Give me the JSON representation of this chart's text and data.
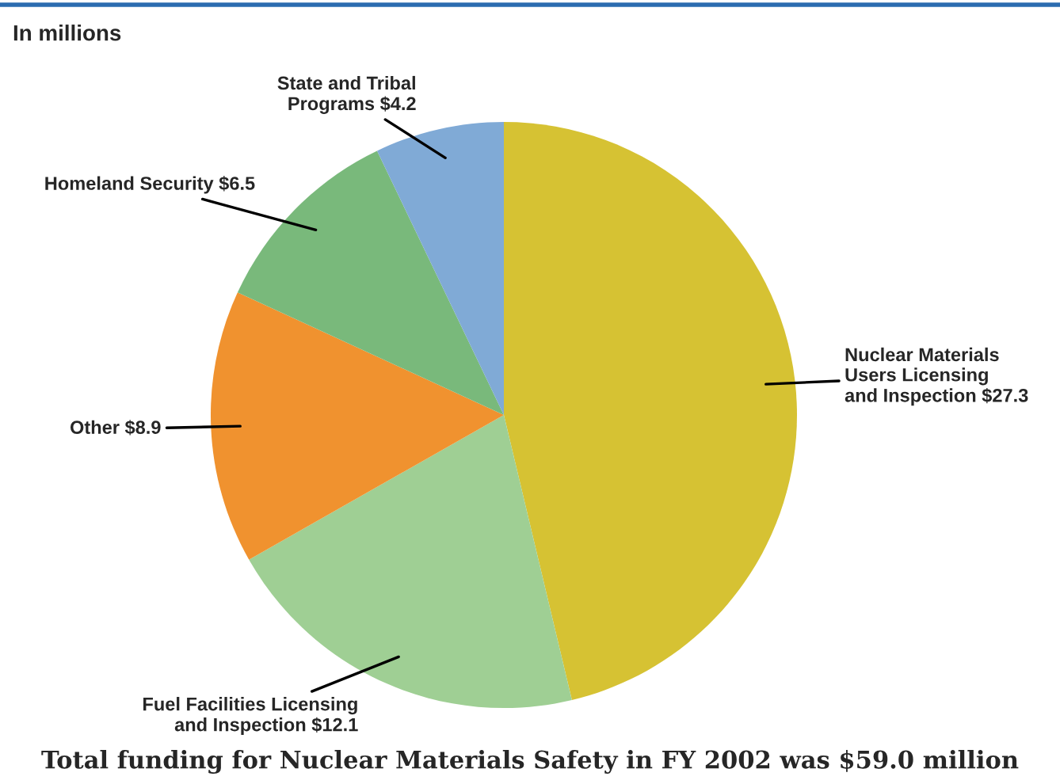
{
  "chart_data": {
    "type": "pie",
    "title": "In millions",
    "categories": [
      "Nuclear Materials\nUsers Licensing\nand Inspection",
      "Fuel Facilities Licensing\nand Inspection",
      "Other",
      "Homeland Security",
      "State and Tribal\nPrograms"
    ],
    "values": [
      27.3,
      12.1,
      8.9,
      6.5,
      4.2
    ],
    "value_labels": [
      "$27.3",
      "$12.1",
      "$8.9",
      "$6.5",
      "$4.2"
    ],
    "colors": [
      "#d6c233",
      "#9fcf94",
      "#f0922f",
      "#79b97b",
      "#80aad6"
    ],
    "annotations": [
      "Total funding for Nuclear Materials Safety in FY 2002 was $59.0 million"
    ]
  }
}
